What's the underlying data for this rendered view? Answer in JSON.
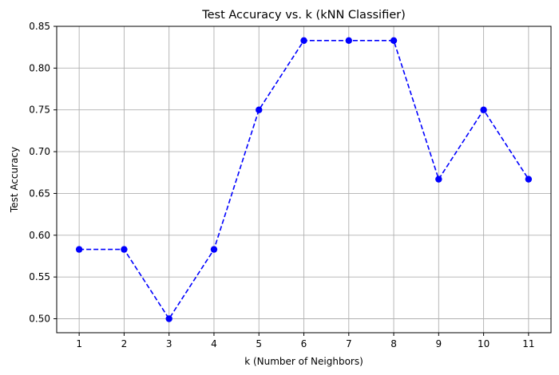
{
  "chart_data": {
    "type": "line",
    "title": "Test Accuracy vs. k (kNN Classifier)",
    "xlabel": "k (Number of Neighbors)",
    "ylabel": "Test Accuracy",
    "x": [
      1,
      2,
      3,
      4,
      5,
      6,
      7,
      8,
      9,
      10,
      11
    ],
    "series": [
      {
        "values": [
          0.583,
          0.583,
          0.5,
          0.583,
          0.75,
          0.833,
          0.833,
          0.833,
          0.667,
          0.75,
          0.667
        ],
        "color": "#0000ff",
        "line_style": "dashed",
        "marker": "circle"
      }
    ],
    "xticks": [
      "1",
      "2",
      "3",
      "4",
      "5",
      "6",
      "7",
      "8",
      "9",
      "10",
      "11"
    ],
    "yticks": [
      "0.50",
      "0.55",
      "0.60",
      "0.65",
      "0.70",
      "0.75",
      "0.80",
      "0.85"
    ],
    "xlim": [
      0.5,
      11.5
    ],
    "ylim": [
      0.4833,
      0.85
    ],
    "grid": true
  }
}
